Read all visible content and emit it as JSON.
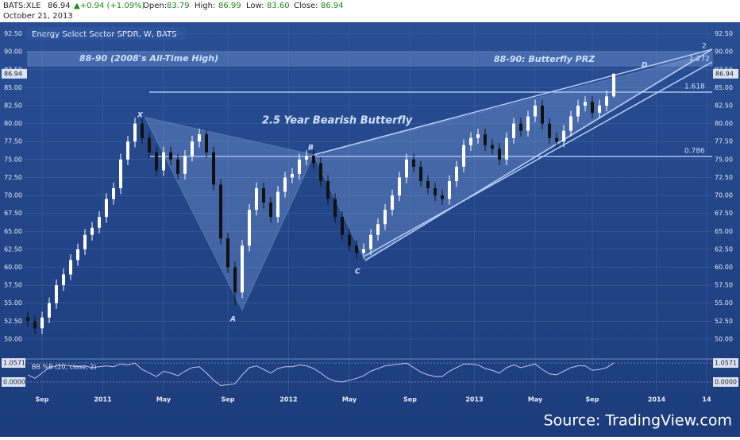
{
  "header": {
    "symbol": "BATS:XLE",
    "last": "86.94",
    "change": "▲+0.94 (+1.09%)",
    "open_label": "Open:",
    "open": "83.79",
    "high_label": "High:",
    "high": "86.99",
    "low_label": "Low:",
    "low": "83.60",
    "close_label": "Close:",
    "close": "86.94",
    "date": "October 21, 2013"
  },
  "chart_data": {
    "type": "candlestick",
    "title": "Energy Select Sector SPDR, W, BATS",
    "x": [
      0,
      2,
      4,
      6,
      8,
      10,
      12,
      14,
      16,
      18,
      20,
      22,
      24,
      26,
      28,
      30,
      32,
      34,
      36,
      38,
      40,
      42,
      44,
      46,
      48,
      50,
      52,
      54,
      56,
      58,
      60,
      62,
      64,
      66,
      68,
      70,
      72,
      74,
      76,
      78,
      80,
      82,
      84,
      86,
      88,
      90,
      92,
      94,
      96,
      98,
      100,
      102,
      104,
      106,
      108,
      110,
      112,
      114,
      116,
      118,
      120,
      122,
      124,
      126,
      128,
      130,
      132,
      134,
      136,
      138,
      140,
      142,
      144,
      146,
      148,
      150,
      152,
      154,
      156,
      158,
      160,
      162,
      164
    ],
    "open": [
      53,
      52.5,
      51.5,
      53,
      55,
      57.5,
      59,
      61,
      62.5,
      64.5,
      65.5,
      67,
      69.5,
      71,
      75,
      77.5,
      80,
      78,
      76,
      73.5,
      76,
      75,
      73,
      75.5,
      77.5,
      78.5,
      76,
      71.5,
      64,
      60,
      56.5,
      63,
      68,
      71,
      69,
      67,
      70.5,
      72.5,
      73,
      75,
      75.5,
      74.5,
      72,
      69.5,
      67,
      64.5,
      63,
      62,
      62.5,
      64.5,
      66,
      68,
      70,
      72.5,
      75,
      74,
      72,
      71,
      70,
      69.5,
      72,
      74,
      77,
      78,
      78.5,
      77,
      76.5,
      75,
      78,
      80,
      79,
      81,
      82.5,
      80,
      78,
      77.5,
      79,
      81,
      82.5,
      83,
      81.5,
      82.5,
      83.79
    ],
    "high": [
      53.8,
      53.3,
      53.8,
      55.8,
      58.3,
      59.8,
      61.8,
      63.3,
      65.3,
      66.3,
      67.8,
      70.3,
      71.8,
      75.8,
      78.3,
      80.8,
      80.8,
      78.8,
      76.8,
      76.8,
      76.8,
      75.8,
      76.3,
      78.3,
      79.3,
      79.3,
      76.8,
      72.3,
      64.8,
      60.8,
      63.8,
      68.8,
      71.8,
      71.8,
      69.8,
      71.3,
      73.3,
      73.8,
      75.8,
      76.3,
      76.3,
      75.3,
      72.8,
      70.3,
      67.8,
      65.3,
      63.8,
      63.3,
      65.3,
      66.8,
      68.8,
      70.8,
      73.3,
      75.8,
      75.8,
      74.8,
      72.8,
      71.8,
      70.8,
      72.8,
      74.8,
      77.8,
      78.8,
      79.3,
      79.3,
      77.8,
      77.3,
      78.8,
      80.8,
      80.8,
      81.8,
      83.3,
      83.3,
      80.8,
      78.8,
      79.8,
      81.8,
      83.3,
      83.8,
      83.8,
      83.3,
      84.6,
      86.99
    ],
    "low": [
      51.7,
      50.7,
      50.7,
      52.2,
      54.2,
      56.7,
      58.2,
      60.2,
      61.7,
      63.7,
      64.7,
      66.2,
      68.7,
      70.2,
      74.2,
      76.7,
      77.2,
      75.2,
      72.7,
      72.7,
      74.2,
      72.2,
      72.2,
      74.7,
      76.7,
      75.2,
      70.7,
      63.2,
      59.2,
      54.7,
      55.7,
      62.2,
      67.2,
      68.2,
      66.2,
      66.2,
      69.7,
      71.7,
      72.2,
      74.2,
      73.7,
      71.2,
      68.7,
      66.2,
      63.7,
      62.2,
      61.2,
      61.2,
      61.7,
      63.7,
      65.2,
      67.2,
      69.2,
      71.7,
      73.2,
      71.2,
      70.2,
      69.2,
      68.7,
      68.7,
      71.2,
      73.2,
      76.2,
      77.2,
      76.2,
      75.7,
      74.2,
      74.2,
      77.2,
      78.2,
      78.2,
      80.2,
      79.2,
      77.2,
      76.7,
      76.7,
      78.2,
      80.2,
      81.7,
      80.7,
      80.7,
      81.7,
      83.6
    ],
    "close": [
      52.5,
      51.5,
      53,
      55,
      57.5,
      59,
      61,
      62.5,
      64.5,
      65.5,
      67,
      69.5,
      71,
      75,
      77.5,
      80,
      78,
      76,
      73.5,
      76,
      75,
      73,
      75.5,
      77.5,
      78.5,
      76,
      71.5,
      64,
      60,
      56.5,
      63,
      68,
      71,
      69,
      67,
      70.5,
      72.5,
      73,
      75,
      75.5,
      74.5,
      72,
      69.5,
      67,
      64.5,
      63,
      62,
      62.5,
      64.5,
      66,
      68,
      70,
      72.5,
      75,
      74,
      72,
      71,
      70,
      69.5,
      72,
      74,
      77,
      78,
      78.5,
      77,
      76.5,
      75,
      78,
      80,
      79,
      81,
      82.5,
      80,
      78,
      77.5,
      79,
      81,
      82.5,
      83,
      81.5,
      82.5,
      83.79,
      86.94
    ],
    "up_color": "#ffffff",
    "down_color": "#111111",
    "xlim": [
      0,
      192
    ],
    "xticks": [
      {
        "value": 4,
        "label": "Sep"
      },
      {
        "value": 21,
        "label": "2011"
      },
      {
        "value": 38,
        "label": "May"
      },
      {
        "value": 56,
        "label": "Sep"
      },
      {
        "value": 73,
        "label": "2012"
      },
      {
        "value": 90,
        "label": "May"
      },
      {
        "value": 107,
        "label": "Sep"
      },
      {
        "value": 125,
        "label": "2013"
      },
      {
        "value": 142,
        "label": "May"
      },
      {
        "value": 158,
        "label": "Sep"
      },
      {
        "value": 176,
        "label": "2014"
      },
      {
        "value": 190,
        "label": "14"
      }
    ],
    "ylim": [
      48,
      94
    ],
    "yticks": [
      {
        "value": 50,
        "label": "50.00"
      },
      {
        "value": 52.5,
        "label": "52.50"
      },
      {
        "value": 55,
        "label": "55.00"
      },
      {
        "value": 57.5,
        "label": "57.50"
      },
      {
        "value": 60,
        "label": "60.00"
      },
      {
        "value": 62.5,
        "label": "62.50"
      },
      {
        "value": 65,
        "label": "65.00"
      },
      {
        "value": 67.5,
        "label": "67.50"
      },
      {
        "value": 70,
        "label": "70.00"
      },
      {
        "value": 72.5,
        "label": "72.50"
      },
      {
        "value": 75,
        "label": "75.00"
      },
      {
        "value": 77.5,
        "label": "77.50"
      },
      {
        "value": 80,
        "label": "80.00"
      },
      {
        "value": 82.5,
        "label": "82.50"
      },
      {
        "value": 85,
        "label": "85.00"
      },
      {
        "value": 87.5,
        "label": "87.50"
      },
      {
        "value": 90,
        "label": "90.00"
      },
      {
        "value": 92.5,
        "label": "92.50"
      }
    ],
    "grid": true,
    "annotations": {
      "x": "X",
      "a": "A",
      "b": "B",
      "c": "C",
      "d": "D",
      "pattern": "2.5 Year Bearish Butterfly",
      "ath": "88-90 (2008's All-Time High)",
      "prz": "88-90: Butterfly PRZ",
      "f1618": "1.618",
      "f0786": "0.786",
      "f1272": "1.272",
      "f2": "2"
    },
    "indicator": {
      "title": "BB %B (20, close, 2)",
      "color": "#c9c4f0",
      "values": [
        0.4,
        0.2,
        0.5,
        0.8,
        0.9,
        0.95,
        0.9,
        0.85,
        0.9,
        0.8,
        0.85,
        0.9,
        0.85,
        1.0,
        0.95,
        1.05,
        0.7,
        0.5,
        0.3,
        0.6,
        0.5,
        0.35,
        0.6,
        0.8,
        0.85,
        0.5,
        0.1,
        -0.2,
        -0.15,
        -0.1,
        0.4,
        0.8,
        0.9,
        0.7,
        0.5,
        0.75,
        0.85,
        0.85,
        0.95,
        0.9,
        0.75,
        0.5,
        0.2,
        0.05,
        0.0,
        0.1,
        0.2,
        0.35,
        0.6,
        0.75,
        0.9,
        0.95,
        1.0,
        1.05,
        0.8,
        0.55,
        0.4,
        0.3,
        0.3,
        0.6,
        0.8,
        1.0,
        1.0,
        0.95,
        0.75,
        0.65,
        0.5,
        0.8,
        0.95,
        0.8,
        0.9,
        1.0,
        0.7,
        0.45,
        0.4,
        0.6,
        0.8,
        0.9,
        0.9,
        0.65,
        0.7,
        0.8,
        1.0571
      ],
      "ylim": [
        -0.4,
        1.28
      ],
      "yticks": [
        {
          "value": 1.0571,
          "label": "1.0571"
        },
        {
          "value": 0,
          "label": "0.0000"
        }
      ]
    },
    "source": "Source: TradingView.com"
  }
}
